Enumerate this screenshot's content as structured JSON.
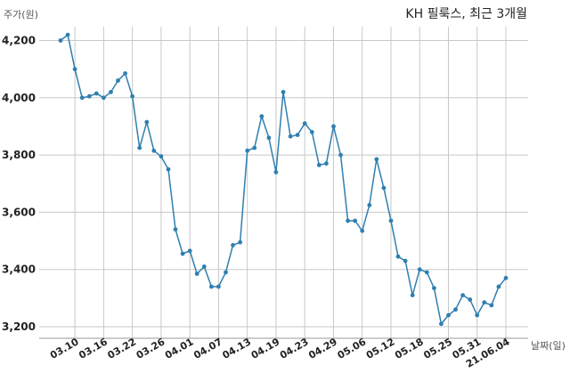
{
  "chart_data": {
    "type": "line",
    "title": "KH 필룩스, 최근 3개월",
    "ylabel": "주가(원)",
    "xlabel": "날짜(일)",
    "ylim": [
      3180,
      4265
    ],
    "yticks": [
      3200,
      3400,
      3600,
      3800,
      4000,
      4200
    ],
    "ytick_labels": [
      "3,200",
      "3,400",
      "3,600",
      "3,800",
      "4,000",
      "4,200"
    ],
    "grid": true,
    "xtick_labels": [
      {
        "label": "03.10",
        "index": 2
      },
      {
        "label": "03.16",
        "index": 6
      },
      {
        "label": "03.22",
        "index": 10
      },
      {
        "label": "03.26",
        "index": 14
      },
      {
        "label": "04.01",
        "index": 18
      },
      {
        "label": "04.07",
        "index": 22
      },
      {
        "label": "04.13",
        "index": 26
      },
      {
        "label": "04.19",
        "index": 30
      },
      {
        "label": "04.23",
        "index": 34
      },
      {
        "label": "04.29",
        "index": 38
      },
      {
        "label": "05.06",
        "index": 42
      },
      {
        "label": "05.12",
        "index": 46
      },
      {
        "label": "05.18",
        "index": 50
      },
      {
        "label": "05.25",
        "index": 54
      },
      {
        "label": "05.31",
        "index": 58
      },
      {
        "label": "21.06.04",
        "index": 62
      }
    ],
    "series": [
      {
        "values": [
          4200,
          4220,
          4100,
          4000,
          4005,
          4015,
          4000,
          4020,
          4060,
          4085,
          4005,
          3825,
          3915,
          3815,
          3795,
          3750,
          3540,
          3455,
          3465,
          3385,
          3410,
          3340,
          3340,
          3390,
          3485,
          3495,
          3815,
          3825,
          3935,
          3860,
          3740,
          4020,
          3865,
          3870,
          3910,
          3880,
          3765,
          3770,
          3900,
          3800,
          3570,
          3570,
          3535,
          3625,
          3785,
          3685,
          3570,
          3445,
          3430,
          3310,
          3400,
          3390,
          3335,
          3210,
          3240,
          3260,
          3310,
          3295,
          3240,
          3285,
          3275,
          3340,
          3370
        ]
      }
    ]
  }
}
